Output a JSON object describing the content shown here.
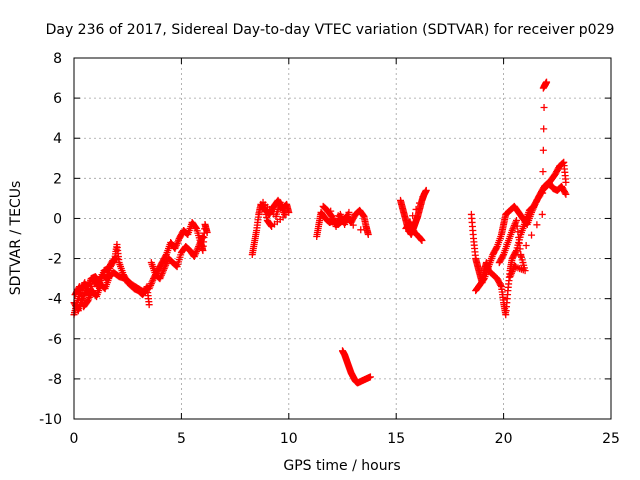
{
  "chart_data": {
    "type": "scatter",
    "title": "Day 236 of 2017, Sidereal Day-to-day VTEC variation (SDTVAR) for receiver p029",
    "xlabel": "GPS time / hours",
    "ylabel": "SDTVAR / TECUs",
    "xlim": [
      0,
      25
    ],
    "ylim": [
      -10,
      8
    ],
    "xticks": [
      0,
      5,
      10,
      15,
      20,
      25
    ],
    "yticks": [
      -10,
      -8,
      -6,
      -4,
      -2,
      0,
      2,
      4,
      6,
      8
    ],
    "grid": true,
    "marker": "+",
    "series": [
      {
        "name": "SDTVAR",
        "color": "#ff0000",
        "segments": [
          [
            [
              0.0,
              -4.8
            ],
            [
              0.15,
              -4.2
            ],
            [
              0.3,
              -3.6
            ],
            [
              0.5,
              -3.2
            ],
            [
              0.7,
              -3.8
            ],
            [
              0.9,
              -3.0
            ],
            [
              1.1,
              -3.4
            ],
            [
              1.3,
              -2.8
            ],
            [
              1.5,
              -3.0
            ],
            [
              1.7,
              -2.4
            ],
            [
              1.9,
              -2.0
            ],
            [
              2.0,
              -1.3
            ],
            [
              2.1,
              -2.2
            ],
            [
              2.3,
              -2.8
            ],
            [
              2.5,
              -3.2
            ],
            [
              2.8,
              -3.5
            ],
            [
              3.0,
              -3.6
            ],
            [
              3.2,
              -3.8
            ],
            [
              3.4,
              -3.4
            ],
            [
              3.5,
              -4.3
            ]
          ],
          [
            [
              0.0,
              -4.2
            ],
            [
              0.2,
              -4.6
            ],
            [
              0.4,
              -4.0
            ],
            [
              0.6,
              -3.5
            ],
            [
              0.8,
              -3.0
            ],
            [
              1.0,
              -2.9
            ],
            [
              1.2,
              -3.2
            ],
            [
              1.4,
              -2.6
            ],
            [
              1.6,
              -2.5
            ],
            [
              1.8,
              -2.1
            ],
            [
              2.0,
              -2.0
            ]
          ],
          [
            [
              0.05,
              -3.8
            ],
            [
              0.25,
              -3.4
            ],
            [
              0.45,
              -4.4
            ],
            [
              0.65,
              -4.1
            ],
            [
              0.85,
              -3.6
            ],
            [
              1.05,
              -3.9
            ],
            [
              1.25,
              -3.3
            ],
            [
              1.45,
              -3.5
            ],
            [
              1.65,
              -2.9
            ],
            [
              1.85,
              -2.7
            ],
            [
              2.1,
              -2.9
            ],
            [
              2.4,
              -3.0
            ],
            [
              2.7,
              -3.3
            ],
            [
              3.0,
              -3.5
            ],
            [
              3.3,
              -3.7
            ]
          ],
          [
            [
              3.5,
              -3.5
            ],
            [
              3.7,
              -3.0
            ],
            [
              3.9,
              -2.6
            ],
            [
              4.1,
              -2.2
            ],
            [
              4.3,
              -1.8
            ],
            [
              4.5,
              -1.2
            ],
            [
              4.7,
              -1.5
            ],
            [
              4.9,
              -1.0
            ],
            [
              5.1,
              -0.6
            ],
            [
              5.3,
              -0.8
            ],
            [
              5.5,
              -0.2
            ],
            [
              5.7,
              -0.5
            ],
            [
              5.9,
              -1.2
            ],
            [
              6.0,
              -1.6
            ],
            [
              6.1,
              -0.3
            ],
            [
              6.2,
              -0.7
            ]
          ],
          [
            [
              3.6,
              -2.2
            ],
            [
              3.8,
              -2.8
            ],
            [
              4.0,
              -3.0
            ],
            [
              4.2,
              -2.5
            ],
            [
              4.4,
              -2.0
            ],
            [
              4.6,
              -2.2
            ],
            [
              4.8,
              -2.4
            ],
            [
              5.0,
              -1.7
            ],
            [
              5.2,
              -1.4
            ],
            [
              5.4,
              -1.6
            ],
            [
              5.6,
              -1.9
            ],
            [
              5.8,
              -1.4
            ],
            [
              6.0,
              -0.9
            ]
          ],
          [
            [
              8.3,
              -1.8
            ],
            [
              8.4,
              -1.2
            ],
            [
              8.5,
              -0.6
            ],
            [
              8.6,
              0.2
            ],
            [
              8.7,
              0.7
            ],
            [
              8.9,
              0.4
            ],
            [
              9.1,
              0.2
            ],
            [
              9.3,
              0.6
            ],
            [
              9.5,
              0.9
            ],
            [
              9.7,
              0.5
            ],
            [
              9.9,
              0.7
            ],
            [
              10.0,
              0.3
            ],
            [
              9.2,
              -0.4
            ],
            [
              9.0,
              -0.1
            ],
            [
              8.8,
              0.8
            ],
            [
              9.4,
              0.1
            ],
            [
              9.6,
              0.8
            ],
            [
              9.8,
              0.2
            ]
          ],
          [
            [
              11.3,
              -0.9
            ],
            [
              11.4,
              -0.3
            ],
            [
              11.5,
              0.3
            ],
            [
              11.7,
              0.0
            ],
            [
              11.9,
              -0.2
            ],
            [
              12.1,
              -0.1
            ],
            [
              12.3,
              -0.3
            ],
            [
              12.5,
              -0.1
            ],
            [
              12.7,
              0.1
            ],
            [
              12.9,
              -0.2
            ],
            [
              13.1,
              0.2
            ],
            [
              13.3,
              0.4
            ],
            [
              13.5,
              0.1
            ],
            [
              13.6,
              -0.4
            ],
            [
              13.7,
              -0.8
            ],
            [
              11.6,
              0.6
            ],
            [
              11.8,
              0.4
            ],
            [
              12.0,
              0.1
            ],
            [
              12.2,
              -0.4
            ],
            [
              12.4,
              0.2
            ],
            [
              12.6,
              -0.3
            ],
            [
              12.8,
              0.3
            ]
          ],
          [
            [
              12.5,
              -6.6
            ],
            [
              12.6,
              -6.8
            ],
            [
              12.7,
              -7.1
            ],
            [
              12.8,
              -7.4
            ],
            [
              12.9,
              -7.7
            ],
            [
              13.0,
              -7.9
            ],
            [
              13.1,
              -8.1
            ],
            [
              13.2,
              -8.2
            ],
            [
              13.4,
              -8.1
            ],
            [
              13.6,
              -8.0
            ],
            [
              13.8,
              -7.9
            ]
          ],
          [
            [
              15.2,
              0.9
            ],
            [
              15.3,
              0.5
            ],
            [
              15.4,
              0.1
            ],
            [
              15.5,
              -0.3
            ],
            [
              15.6,
              -0.6
            ],
            [
              15.7,
              -0.8
            ],
            [
              15.8,
              -0.5
            ],
            [
              15.9,
              -0.2
            ],
            [
              16.0,
              0.1
            ],
            [
              16.1,
              0.5
            ],
            [
              16.2,
              0.9
            ],
            [
              16.3,
              1.2
            ],
            [
              16.4,
              1.4
            ],
            [
              15.45,
              -0.5
            ],
            [
              15.65,
              -0.2
            ],
            [
              15.85,
              -0.7
            ],
            [
              16.05,
              -0.9
            ],
            [
              16.2,
              -1.1
            ]
          ],
          [
            [
              18.5,
              0.2
            ],
            [
              18.6,
              -1.0
            ],
            [
              18.7,
              -2.0
            ],
            [
              18.8,
              -2.4
            ],
            [
              18.9,
              -2.8
            ],
            [
              19.0,
              -3.2
            ],
            [
              19.1,
              -2.6
            ],
            [
              19.2,
              -2.2
            ],
            [
              19.3,
              -2.6
            ],
            [
              19.5,
              -2.8
            ],
            [
              19.7,
              -3.0
            ],
            [
              19.9,
              -3.4
            ],
            [
              20.0,
              -4.2
            ],
            [
              20.1,
              -4.8
            ],
            [
              20.2,
              -3.6
            ],
            [
              20.3,
              -2.6
            ],
            [
              20.4,
              -2.0
            ],
            [
              20.6,
              -1.6
            ],
            [
              20.8,
              -0.8
            ],
            [
              21.0,
              -0.2
            ],
            [
              21.2,
              0.4
            ],
            [
              21.4,
              0.6
            ],
            [
              21.6,
              1.0
            ],
            [
              21.8,
              1.4
            ],
            [
              22.0,
              1.6
            ],
            [
              22.2,
              1.9
            ],
            [
              22.4,
              2.2
            ],
            [
              22.6,
              2.6
            ],
            [
              22.8,
              2.8
            ],
            [
              22.9,
              1.8
            ]
          ],
          [
            [
              18.7,
              -3.6
            ],
            [
              18.9,
              -3.3
            ],
            [
              19.1,
              -3.0
            ],
            [
              19.3,
              -2.4
            ],
            [
              19.5,
              -1.8
            ],
            [
              19.7,
              -1.4
            ],
            [
              19.9,
              -0.8
            ],
            [
              20.0,
              -0.3
            ],
            [
              20.1,
              0.2
            ],
            [
              20.3,
              0.4
            ],
            [
              20.5,
              0.6
            ],
            [
              20.7,
              0.3
            ],
            [
              20.9,
              0.0
            ],
            [
              21.1,
              -0.3
            ],
            [
              21.3,
              0.3
            ],
            [
              21.5,
              0.8
            ],
            [
              21.7,
              1.2
            ],
            [
              21.9,
              1.6
            ],
            [
              22.1,
              1.8
            ],
            [
              22.3,
              1.5
            ],
            [
              22.5,
              1.4
            ],
            [
              22.7,
              1.6
            ],
            [
              22.9,
              1.2
            ]
          ],
          [
            [
              19.8,
              -2.2
            ],
            [
              20.0,
              -1.8
            ],
            [
              20.2,
              -1.2
            ],
            [
              20.4,
              -0.6
            ],
            [
              20.6,
              -0.1
            ],
            [
              20.8,
              -1.8
            ],
            [
              21.0,
              -2.6
            ],
            [
              20.5,
              -2.4
            ],
            [
              20.3,
              -2.9
            ],
            [
              21.8,
              0.2
            ],
            [
              21.9,
              6.6
            ],
            [
              22.0,
              6.8
            ],
            [
              21.85,
              6.5
            ]
          ]
        ]
      }
    ]
  }
}
